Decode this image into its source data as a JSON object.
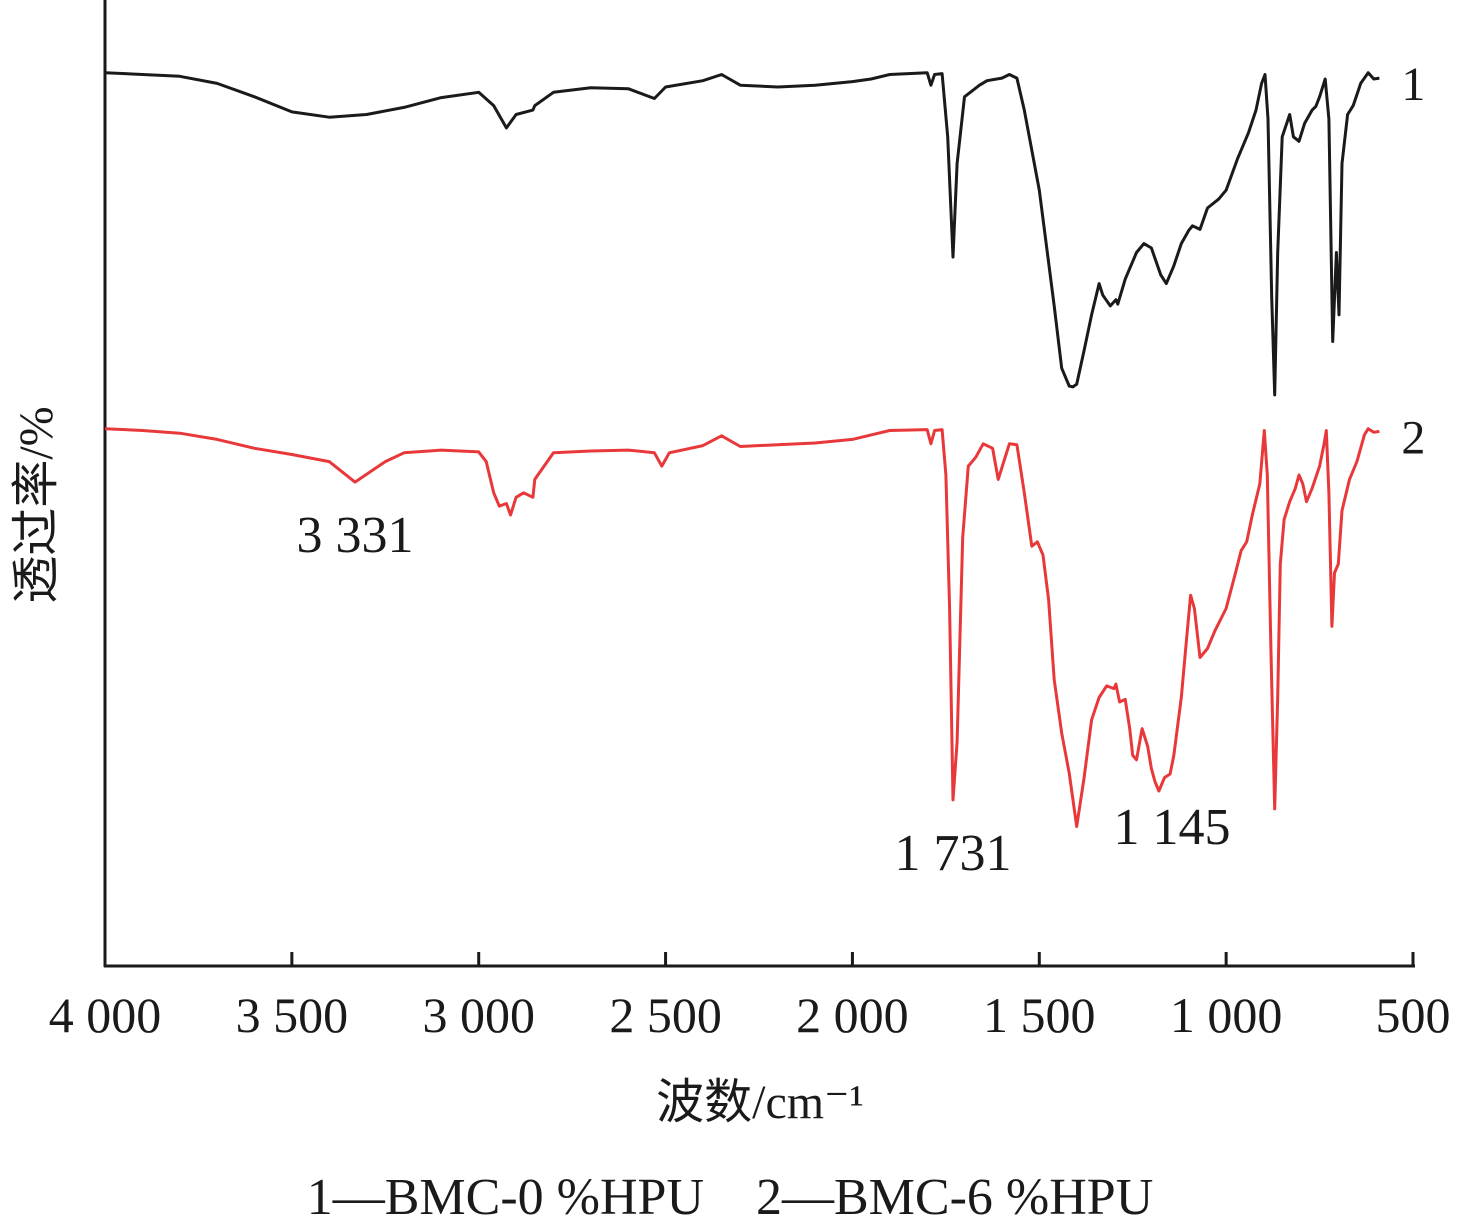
{
  "chart_data": {
    "type": "line",
    "xlabel": "波数/cm⁻¹",
    "ylabel": "透过率/%",
    "xlim": [
      4000,
      500
    ],
    "x_reversed": true,
    "x_ticks": [
      4000,
      3500,
      3000,
      2500,
      2000,
      1500,
      1000,
      500
    ],
    "x_tick_labels": [
      "4 000",
      "3 500",
      "3 000",
      "2 500",
      "2 000",
      "1 500",
      "1 000",
      "500"
    ],
    "y_ticks_shown": false,
    "grid": false,
    "legend_text": "1—BMC-0 %HPU    2—BMC-6 %HPU",
    "annotations": [
      {
        "text": "3 331",
        "x": 3331,
        "series": 2
      },
      {
        "text": "1 731",
        "x": 1731,
        "series": 2
      },
      {
        "text": "1 145",
        "x": 1145,
        "series": 2
      }
    ],
    "series": [
      {
        "name": "1",
        "color": "#1a1a1a",
        "points": [
          [
            4000,
            95.2
          ],
          [
            3900,
            95.0
          ],
          [
            3800,
            94.8
          ],
          [
            3700,
            94.0
          ],
          [
            3600,
            92.5
          ],
          [
            3500,
            90.8
          ],
          [
            3400,
            90.2
          ],
          [
            3300,
            90.5
          ],
          [
            3200,
            91.3
          ],
          [
            3100,
            92.4
          ],
          [
            3000,
            93.0
          ],
          [
            2960,
            91.5
          ],
          [
            2926,
            89.0
          ],
          [
            2900,
            90.5
          ],
          [
            2855,
            91.0
          ],
          [
            2850,
            91.5
          ],
          [
            2800,
            93.0
          ],
          [
            2700,
            93.5
          ],
          [
            2600,
            93.4
          ],
          [
            2530,
            92.3
          ],
          [
            2500,
            93.6
          ],
          [
            2400,
            94.3
          ],
          [
            2350,
            95.0
          ],
          [
            2300,
            93.8
          ],
          [
            2200,
            93.6
          ],
          [
            2100,
            93.8
          ],
          [
            2000,
            94.2
          ],
          [
            1950,
            94.5
          ],
          [
            1900,
            95.0
          ],
          [
            1800,
            95.2
          ],
          [
            1790,
            93.8
          ],
          [
            1780,
            95.0
          ],
          [
            1760,
            95.1
          ],
          [
            1745,
            88.0
          ],
          [
            1731,
            74.5
          ],
          [
            1720,
            85.0
          ],
          [
            1700,
            92.5
          ],
          [
            1660,
            93.8
          ],
          [
            1640,
            94.3
          ],
          [
            1600,
            94.6
          ],
          [
            1580,
            95.0
          ],
          [
            1560,
            94.6
          ],
          [
            1540,
            91.0
          ],
          [
            1500,
            82.0
          ],
          [
            1460,
            69.0
          ],
          [
            1440,
            62.0
          ],
          [
            1420,
            60.0
          ],
          [
            1410,
            59.9
          ],
          [
            1400,
            60.2
          ],
          [
            1380,
            64.0
          ],
          [
            1360,
            68.0
          ],
          [
            1340,
            71.5
          ],
          [
            1330,
            70.2
          ],
          [
            1310,
            69.0
          ],
          [
            1295,
            69.7
          ],
          [
            1290,
            69.2
          ],
          [
            1270,
            72.0
          ],
          [
            1240,
            75.0
          ],
          [
            1220,
            76.0
          ],
          [
            1200,
            75.5
          ],
          [
            1175,
            72.5
          ],
          [
            1160,
            71.5
          ],
          [
            1140,
            73.5
          ],
          [
            1120,
            76.0
          ],
          [
            1100,
            77.5
          ],
          [
            1090,
            78.0
          ],
          [
            1070,
            77.6
          ],
          [
            1050,
            80.0
          ],
          [
            1020,
            81.0
          ],
          [
            1000,
            82.0
          ],
          [
            970,
            85.5
          ],
          [
            940,
            88.5
          ],
          [
            920,
            91.0
          ],
          [
            905,
            94.0
          ],
          [
            896,
            95.0
          ],
          [
            888,
            90.0
          ],
          [
            878,
            70.0
          ],
          [
            870,
            59.0
          ],
          [
            862,
            75.0
          ],
          [
            850,
            88.0
          ],
          [
            830,
            90.5
          ],
          [
            820,
            88.0
          ],
          [
            805,
            87.5
          ],
          [
            790,
            89.5
          ],
          [
            770,
            91.0
          ],
          [
            760,
            91.4
          ],
          [
            750,
            92.5
          ],
          [
            735,
            94.5
          ],
          [
            725,
            90.0
          ],
          [
            715,
            65.0
          ],
          [
            705,
            75.0
          ],
          [
            698,
            68.0
          ],
          [
            690,
            85.0
          ],
          [
            675,
            90.5
          ],
          [
            660,
            91.5
          ],
          [
            640,
            94.0
          ],
          [
            620,
            95.2
          ],
          [
            605,
            94.5
          ],
          [
            590,
            94.6
          ]
        ]
      },
      {
        "name": "2",
        "color": "#e8383a",
        "points": [
          [
            4000,
            55.2
          ],
          [
            3900,
            55.0
          ],
          [
            3800,
            54.7
          ],
          [
            3700,
            54.0
          ],
          [
            3600,
            53.0
          ],
          [
            3500,
            52.3
          ],
          [
            3400,
            51.5
          ],
          [
            3331,
            49.2
          ],
          [
            3250,
            51.5
          ],
          [
            3200,
            52.5
          ],
          [
            3100,
            52.8
          ],
          [
            3000,
            52.6
          ],
          [
            2980,
            51.5
          ],
          [
            2960,
            48.0
          ],
          [
            2945,
            46.5
          ],
          [
            2926,
            46.8
          ],
          [
            2915,
            45.5
          ],
          [
            2900,
            47.5
          ],
          [
            2880,
            48.0
          ],
          [
            2855,
            47.5
          ],
          [
            2850,
            49.5
          ],
          [
            2800,
            52.5
          ],
          [
            2700,
            52.7
          ],
          [
            2600,
            52.8
          ],
          [
            2530,
            52.5
          ],
          [
            2510,
            51.0
          ],
          [
            2490,
            52.5
          ],
          [
            2400,
            53.3
          ],
          [
            2350,
            54.4
          ],
          [
            2300,
            53.2
          ],
          [
            2200,
            53.4
          ],
          [
            2100,
            53.6
          ],
          [
            2000,
            54.0
          ],
          [
            1950,
            54.5
          ],
          [
            1900,
            55.0
          ],
          [
            1800,
            55.1
          ],
          [
            1790,
            53.5
          ],
          [
            1780,
            55.0
          ],
          [
            1760,
            55.1
          ],
          [
            1750,
            50.0
          ],
          [
            1740,
            35.0
          ],
          [
            1731,
            13.5
          ],
          [
            1720,
            20.0
          ],
          [
            1705,
            43.0
          ],
          [
            1690,
            51.0
          ],
          [
            1670,
            52.0
          ],
          [
            1650,
            53.5
          ],
          [
            1625,
            53.0
          ],
          [
            1610,
            49.5
          ],
          [
            1595,
            51.5
          ],
          [
            1580,
            53.5
          ],
          [
            1560,
            53.4
          ],
          [
            1540,
            48.0
          ],
          [
            1520,
            42.0
          ],
          [
            1505,
            42.5
          ],
          [
            1490,
            41.0
          ],
          [
            1475,
            36.0
          ],
          [
            1460,
            27.0
          ],
          [
            1440,
            21.0
          ],
          [
            1420,
            16.5
          ],
          [
            1400,
            10.5
          ],
          [
            1380,
            16.0
          ],
          [
            1360,
            22.5
          ],
          [
            1340,
            25.0
          ],
          [
            1320,
            26.3
          ],
          [
            1300,
            26.0
          ],
          [
            1295,
            26.5
          ],
          [
            1285,
            24.5
          ],
          [
            1270,
            24.8
          ],
          [
            1258,
            21.5
          ],
          [
            1250,
            18.5
          ],
          [
            1240,
            18.0
          ],
          [
            1225,
            21.5
          ],
          [
            1210,
            19.5
          ],
          [
            1200,
            17.0
          ],
          [
            1190,
            15.5
          ],
          [
            1180,
            14.5
          ],
          [
            1165,
            16.0
          ],
          [
            1150,
            16.4
          ],
          [
            1140,
            18.5
          ],
          [
            1120,
            25.0
          ],
          [
            1105,
            32.0
          ],
          [
            1095,
            36.5
          ],
          [
            1085,
            35.0
          ],
          [
            1070,
            29.5
          ],
          [
            1050,
            30.5
          ],
          [
            1030,
            32.5
          ],
          [
            1000,
            35.0
          ],
          [
            975,
            39.0
          ],
          [
            960,
            41.5
          ],
          [
            945,
            42.5
          ],
          [
            930,
            45.5
          ],
          [
            910,
            49.0
          ],
          [
            898,
            55.0
          ],
          [
            890,
            50.0
          ],
          [
            880,
            30.0
          ],
          [
            870,
            12.5
          ],
          [
            862,
            25.0
          ],
          [
            855,
            40.0
          ],
          [
            845,
            45.0
          ],
          [
            830,
            47.0
          ],
          [
            815,
            48.5
          ],
          [
            805,
            50.0
          ],
          [
            795,
            49.0
          ],
          [
            785,
            47.0
          ],
          [
            770,
            48.5
          ],
          [
            750,
            51.0
          ],
          [
            738,
            53.5
          ],
          [
            732,
            55.0
          ],
          [
            725,
            48.0
          ],
          [
            717,
            33.0
          ],
          [
            710,
            39.0
          ],
          [
            700,
            40.0
          ],
          [
            690,
            46.0
          ],
          [
            670,
            49.5
          ],
          [
            650,
            51.5
          ],
          [
            630,
            54.5
          ],
          [
            620,
            55.2
          ],
          [
            605,
            54.8
          ],
          [
            590,
            54.9
          ]
        ]
      }
    ]
  }
}
